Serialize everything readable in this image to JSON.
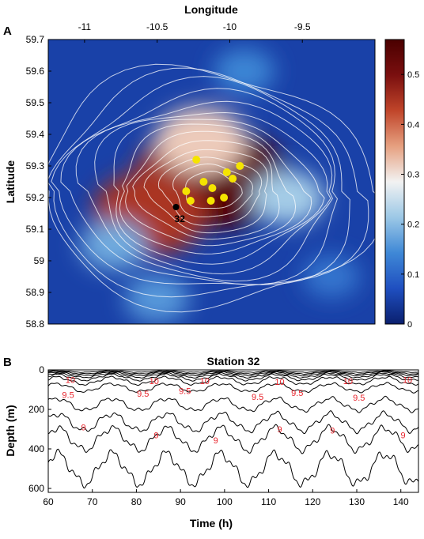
{
  "figure": {
    "panel_a_letter": "A",
    "panel_b_letter": "B"
  },
  "chart_data": [
    {
      "type": "heatmap",
      "panel": "A",
      "title": "",
      "xlabel": "Longitude",
      "ylabel": "Latitude",
      "xlim": [
        -11.25,
        -9.0
      ],
      "ylim": [
        58.8,
        59.7
      ],
      "x_ticks": [
        -11,
        -10.5,
        -10,
        -9.5
      ],
      "x_tick_labels": [
        "-11",
        "-10.5",
        "-10",
        "-9.5"
      ],
      "y_ticks": [
        58.8,
        58.9,
        59,
        59.1,
        59.2,
        59.3,
        59.4,
        59.5,
        59.6,
        59.7
      ],
      "y_tick_labels": [
        "58.8",
        "58.9",
        "59",
        "59.1",
        "59.2",
        "59.3",
        "59.4",
        "59.5",
        "59.6",
        "59.7"
      ],
      "x_axis_position": "top",
      "colorbar": {
        "range": [
          0,
          0.57
        ],
        "ticks": [
          0,
          0.1,
          0.2,
          0.3,
          0.4,
          0.5
        ],
        "tick_labels": [
          "0",
          "0.1",
          "0.2",
          "0.3",
          "0.4",
          "0.5"
        ],
        "colormap": [
          "#0a1f6e",
          "#1f4fc0",
          "#3f88d6",
          "#9cc8e6",
          "#f2f2f2",
          "#e6a080",
          "#c0452a",
          "#7a0f0f",
          "#4a0000"
        ]
      },
      "field_blobs": [
        {
          "lon": -10.25,
          "lat": 59.28,
          "value": 0.45
        },
        {
          "lon": -10.05,
          "lat": 59.26,
          "value": 0.55
        },
        {
          "lon": -10.55,
          "lat": 59.15,
          "value": 0.45
        },
        {
          "lon": -10.2,
          "lat": 59.38,
          "value": 0.32
        },
        {
          "lon": -9.6,
          "lat": 59.2,
          "value": 0.22
        },
        {
          "lon": -10.8,
          "lat": 59.05,
          "value": 0.18
        },
        {
          "lon": -9.9,
          "lat": 59.6,
          "value": 0.14
        },
        {
          "lon": -9.3,
          "lat": 58.95,
          "value": 0.12
        },
        {
          "lon": -10.5,
          "lat": 58.88,
          "value": 0.16
        }
      ],
      "background_value": 0.05,
      "yellow_markers": [
        {
          "lon": -10.23,
          "lat": 59.32
        },
        {
          "lon": -10.18,
          "lat": 59.25
        },
        {
          "lon": -10.12,
          "lat": 59.23
        },
        {
          "lon": -10.3,
          "lat": 59.22
        },
        {
          "lon": -10.27,
          "lat": 59.19
        },
        {
          "lon": -10.13,
          "lat": 59.19
        },
        {
          "lon": -9.98,
          "lat": 59.26
        },
        {
          "lon": -9.93,
          "lat": 59.3
        },
        {
          "lon": -10.04,
          "lat": 59.2
        },
        {
          "lon": -10.02,
          "lat": 59.28
        }
      ],
      "station": {
        "label": "32",
        "lon": -10.37,
        "lat": 59.17
      },
      "marker_colors": {
        "yellow": "#f5e400",
        "station": "#000000"
      }
    },
    {
      "type": "line",
      "panel": "B",
      "title": "Station 32",
      "xlabel": "Time (h)",
      "ylabel": "Depth (m)",
      "xlim": [
        60,
        144
      ],
      "ylim": [
        620,
        0
      ],
      "x_ticks": [
        60,
        70,
        80,
        90,
        100,
        110,
        120,
        130,
        140
      ],
      "x_tick_labels": [
        "60",
        "70",
        "80",
        "90",
        "100",
        "110",
        "120",
        "130",
        "140"
      ],
      "y_ticks": [
        0,
        200,
        400,
        600
      ],
      "y_tick_labels": [
        "0",
        "200",
        "400",
        "600"
      ],
      "isotherm_period_h": 12.4,
      "isotherms": [
        {
          "base_depth": 8,
          "amplitude": 4
        },
        {
          "base_depth": 14,
          "amplitude": 6
        },
        {
          "base_depth": 20,
          "amplitude": 8
        },
        {
          "base_depth": 28,
          "amplitude": 10
        },
        {
          "base_depth": 38,
          "amplitude": 14
        },
        {
          "base_depth": 55,
          "amplitude": 18
        },
        {
          "base_depth": 90,
          "amplitude": 20
        },
        {
          "base_depth": 175,
          "amplitude": 30
        },
        {
          "base_depth": 265,
          "amplitude": 42
        },
        {
          "base_depth": 350,
          "amplitude": 55
        },
        {
          "base_depth": 500,
          "amplitude": 75
        }
      ],
      "contour_labels": [
        {
          "text": "10",
          "time": 65,
          "depth": 50
        },
        {
          "text": "10",
          "time": 84,
          "depth": 55
        },
        {
          "text": "10",
          "time": 95.5,
          "depth": 55
        },
        {
          "text": "10",
          "time": 112.5,
          "depth": 60
        },
        {
          "text": "10",
          "time": 128,
          "depth": 55
        },
        {
          "text": "10",
          "time": 141.5,
          "depth": 50
        },
        {
          "text": "9.5",
          "time": 64.5,
          "depth": 125
        },
        {
          "text": "9.5",
          "time": 81.5,
          "depth": 120
        },
        {
          "text": "9.5",
          "time": 91,
          "depth": 105
        },
        {
          "text": "9.5",
          "time": 107.5,
          "depth": 135
        },
        {
          "text": "9.5",
          "time": 116.5,
          "depth": 115
        },
        {
          "text": "9.5",
          "time": 130.5,
          "depth": 140
        },
        {
          "text": "9",
          "time": 68,
          "depth": 290
        },
        {
          "text": "9",
          "time": 84.5,
          "depth": 330
        },
        {
          "text": "9",
          "time": 98,
          "depth": 355
        },
        {
          "text": "9",
          "time": 112.5,
          "depth": 300
        },
        {
          "text": "9",
          "time": 124.5,
          "depth": 305
        },
        {
          "text": "9",
          "time": 140.5,
          "depth": 330
        }
      ],
      "label_color": "#e8242c",
      "line_color": "#000000"
    }
  ]
}
